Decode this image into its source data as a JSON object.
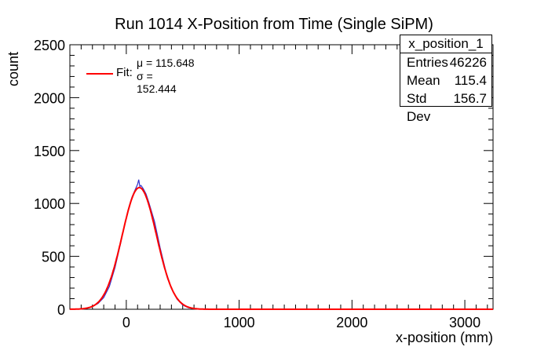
{
  "chart_data": {
    "type": "line",
    "title": "Run 1014 X-Position from Time (Single SiPM)",
    "xlabel": "x-position (mm)",
    "ylabel": "count",
    "xlim": [
      -500,
      3250
    ],
    "ylim": [
      0,
      2500
    ],
    "x_ticks": [
      0,
      1000,
      2000,
      3000
    ],
    "y_ticks": [
      0,
      500,
      1000,
      1500,
      2000,
      2500
    ],
    "grid": false,
    "legend_position": "top-left",
    "histogram": {
      "name": "x_position_1",
      "color": "#3333cc",
      "x": [
        -450,
        -400,
        -350,
        -300,
        -250,
        -200,
        -150,
        -100,
        -50,
        0,
        25,
        50,
        75,
        100,
        110,
        120,
        130,
        150,
        175,
        200,
        250,
        300,
        350,
        400,
        450,
        500,
        550,
        600,
        650,
        700
      ],
      "y": [
        0,
        5,
        10,
        25,
        55,
        110,
        215,
        395,
        625,
        865,
        975,
        1060,
        1120,
        1180,
        1225,
        1160,
        1170,
        1140,
        1090,
        1010,
        830,
        580,
        360,
        195,
        95,
        40,
        15,
        6,
        2,
        0
      ]
    },
    "fit": {
      "name": "Fit",
      "color": "#ff0000",
      "function": "gaus",
      "amplitude": 1150,
      "mu": 115.648,
      "sigma": 152.444,
      "mu_text": "μ = 115.648",
      "sigma_text": "σ = 152.444"
    },
    "stats_box": {
      "name": "x_position_1",
      "rows": [
        {
          "label": "Entries",
          "value": "46226"
        },
        {
          "label": "Mean",
          "value": "115.4"
        },
        {
          "label": "Std Dev",
          "value": "156.7"
        }
      ]
    },
    "legend_label": "Fit:"
  }
}
